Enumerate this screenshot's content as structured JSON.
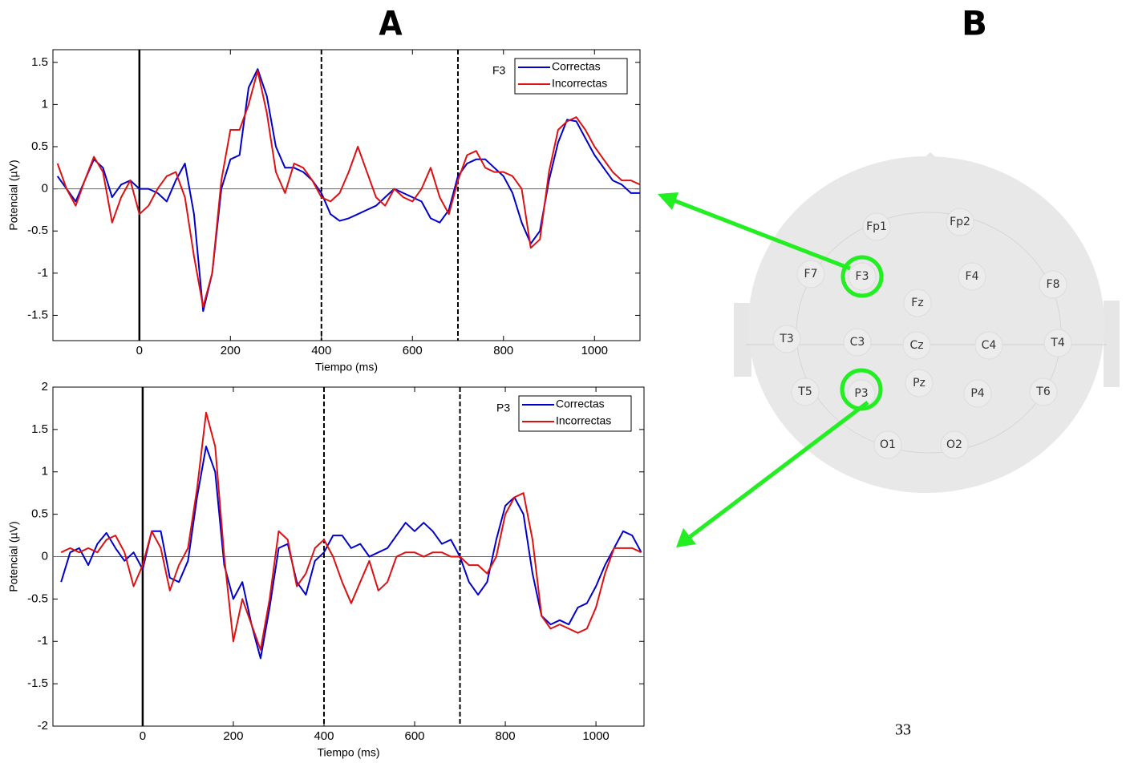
{
  "panel_labels": [
    "A",
    "B"
  ],
  "page_number": "33",
  "head": {
    "electrodes": [
      "Fp1",
      "Fp2",
      "F7",
      "F3",
      "F4",
      "F8",
      "Fz",
      "T3",
      "C3",
      "Cz",
      "C4",
      "T4",
      "T5",
      "P3",
      "Pz",
      "P4",
      "T6",
      "O1",
      "O2"
    ]
  },
  "chart_data": [
    {
      "type": "line",
      "annotation": "F3",
      "xlabel": "Tiempo (ms)",
      "ylabel": "Potencial (µV)",
      "xlim": [
        -190,
        1100
      ],
      "ylim": [
        -1.8,
        1.65
      ],
      "xticks": [
        0,
        200,
        400,
        600,
        800,
        1000
      ],
      "yticks": [
        -1.5,
        -1,
        -0.5,
        0,
        0.5,
        1,
        1.5
      ],
      "legend": "upper right",
      "hline": 0,
      "event_lines": [
        {
          "x": 0,
          "dashed": false
        },
        {
          "x": 400,
          "dashed": true
        },
        {
          "x": 700,
          "dashed": true
        }
      ],
      "x": [
        -180,
        -160,
        -140,
        -120,
        -100,
        -80,
        -60,
        -40,
        -20,
        0,
        20,
        40,
        60,
        80,
        100,
        120,
        140,
        160,
        180,
        200,
        220,
        240,
        260,
        280,
        300,
        320,
        340,
        360,
        380,
        400,
        420,
        440,
        460,
        480,
        500,
        520,
        540,
        560,
        580,
        600,
        620,
        640,
        660,
        680,
        700,
        720,
        740,
        760,
        780,
        800,
        820,
        840,
        860,
        880,
        900,
        920,
        940,
        960,
        980,
        1000,
        1020,
        1040,
        1060,
        1080,
        1100
      ],
      "series": [
        {
          "name": "Correctas",
          "color": "#0000cc",
          "values": [
            0.15,
            0.0,
            -0.15,
            0.1,
            0.35,
            0.25,
            -0.1,
            0.05,
            0.1,
            0.0,
            0.0,
            -0.05,
            -0.15,
            0.1,
            0.3,
            -0.3,
            -1.45,
            -1.0,
            0.0,
            0.35,
            0.4,
            1.2,
            1.42,
            1.1,
            0.5,
            0.25,
            0.25,
            0.2,
            0.1,
            -0.05,
            -0.3,
            -0.38,
            -0.35,
            -0.3,
            -0.25,
            -0.2,
            -0.1,
            0.0,
            -0.05,
            -0.1,
            -0.15,
            -0.35,
            -0.4,
            -0.25,
            0.15,
            0.3,
            0.35,
            0.35,
            0.25,
            0.15,
            -0.05,
            -0.4,
            -0.65,
            -0.5,
            0.1,
            0.55,
            0.82,
            0.8,
            0.6,
            0.4,
            0.25,
            0.1,
            0.05,
            -0.05,
            -0.05
          ]
        },
        {
          "name": "Incorrectas",
          "color": "#dd1111",
          "values": [
            0.3,
            0.0,
            -0.2,
            0.1,
            0.38,
            0.2,
            -0.4,
            -0.1,
            0.1,
            -0.3,
            -0.2,
            0.0,
            0.15,
            0.2,
            -0.1,
            -0.8,
            -1.4,
            -1.0,
            0.1,
            0.7,
            0.7,
            1.0,
            1.4,
            0.9,
            0.2,
            -0.05,
            0.3,
            0.25,
            0.1,
            -0.1,
            -0.15,
            -0.05,
            0.2,
            0.5,
            0.2,
            -0.1,
            -0.2,
            0.0,
            -0.1,
            -0.15,
            0.0,
            0.25,
            -0.1,
            -0.3,
            0.1,
            0.4,
            0.45,
            0.25,
            0.2,
            0.2,
            0.15,
            0.0,
            -0.7,
            -0.6,
            0.2,
            0.7,
            0.8,
            0.85,
            0.7,
            0.5,
            0.35,
            0.2,
            0.1,
            0.1,
            0.05
          ]
        }
      ]
    },
    {
      "type": "line",
      "annotation": "P3",
      "xlabel": "Tiempo (ms)",
      "ylabel": "Potencial (µV)",
      "xlim": [
        -198,
        1106
      ],
      "ylim": [
        -2,
        2
      ],
      "xticks": [
        0,
        200,
        400,
        600,
        800,
        1000
      ],
      "yticks": [
        -2,
        -1.5,
        -1,
        -0.5,
        0,
        0.5,
        1,
        1.5,
        2
      ],
      "legend": "upper right",
      "hline": 0,
      "event_lines": [
        {
          "x": 0,
          "dashed": false
        },
        {
          "x": 400,
          "dashed": true
        },
        {
          "x": 700,
          "dashed": true
        }
      ],
      "x": [
        -180,
        -160,
        -140,
        -120,
        -100,
        -80,
        -60,
        -40,
        -20,
        0,
        20,
        40,
        60,
        80,
        100,
        120,
        140,
        160,
        180,
        200,
        220,
        240,
        260,
        280,
        300,
        320,
        340,
        360,
        380,
        400,
        420,
        440,
        460,
        480,
        500,
        520,
        540,
        560,
        580,
        600,
        620,
        640,
        660,
        680,
        700,
        720,
        740,
        760,
        780,
        800,
        820,
        840,
        860,
        880,
        900,
        920,
        940,
        960,
        980,
        1000,
        1020,
        1040,
        1060,
        1080,
        1100
      ],
      "series": [
        {
          "name": "Correctas",
          "color": "#0000cc",
          "values": [
            -0.3,
            0.05,
            0.1,
            -0.1,
            0.15,
            0.28,
            0.1,
            -0.05,
            0.05,
            -0.15,
            0.3,
            0.3,
            -0.25,
            -0.3,
            -0.05,
            0.7,
            1.3,
            1.0,
            -0.1,
            -0.5,
            -0.3,
            -0.8,
            -1.2,
            -0.6,
            0.1,
            0.15,
            -0.3,
            -0.45,
            -0.05,
            0.05,
            0.25,
            0.25,
            0.1,
            0.15,
            0.0,
            0.05,
            0.1,
            0.25,
            0.4,
            0.3,
            0.4,
            0.3,
            0.15,
            0.2,
            0.0,
            -0.3,
            -0.45,
            -0.3,
            0.2,
            0.6,
            0.7,
            0.5,
            -0.2,
            -0.7,
            -0.8,
            -0.75,
            -0.8,
            -0.6,
            -0.55,
            -0.35,
            -0.1,
            0.1,
            0.3,
            0.25,
            0.05
          ]
        },
        {
          "name": "Incorrectas",
          "color": "#dd1111",
          "values": [
            0.05,
            0.1,
            0.05,
            0.1,
            0.05,
            0.2,
            0.25,
            0.05,
            -0.35,
            -0.1,
            0.3,
            0.1,
            -0.4,
            -0.1,
            0.1,
            0.8,
            1.7,
            1.3,
            0.0,
            -1.0,
            -0.5,
            -0.8,
            -1.1,
            -0.5,
            0.3,
            0.2,
            -0.35,
            -0.2,
            0.1,
            0.2,
            0.0,
            -0.3,
            -0.55,
            -0.3,
            -0.05,
            -0.4,
            -0.3,
            0.0,
            0.05,
            0.05,
            0.0,
            0.05,
            0.05,
            0.0,
            0.0,
            -0.1,
            -0.1,
            -0.2,
            0.0,
            0.5,
            0.7,
            0.75,
            0.2,
            -0.7,
            -0.85,
            -0.8,
            -0.85,
            -0.9,
            -0.85,
            -0.6,
            -0.2,
            0.1,
            0.1,
            0.1,
            0.05
          ]
        }
      ]
    }
  ]
}
